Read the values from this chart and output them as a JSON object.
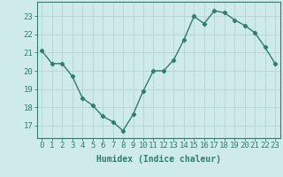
{
  "x": [
    0,
    1,
    2,
    3,
    4,
    5,
    6,
    7,
    8,
    9,
    10,
    11,
    12,
    13,
    14,
    15,
    16,
    17,
    18,
    19,
    20,
    21,
    22,
    23
  ],
  "y": [
    21.1,
    20.4,
    20.4,
    19.7,
    18.5,
    18.1,
    17.5,
    17.2,
    16.7,
    17.6,
    18.9,
    20.0,
    20.0,
    20.6,
    21.7,
    23.0,
    22.6,
    23.3,
    23.2,
    22.8,
    22.5,
    22.1,
    21.3,
    20.4
  ],
  "line_color": "#2e7d6e",
  "marker": "D",
  "markersize": 2.2,
  "linewidth": 1.0,
  "bg_color": "#ceeaea",
  "grid_color": "#b8d8d8",
  "xlabel": "Humidex (Indice chaleur)",
  "xlim": [
    -0.5,
    23.5
  ],
  "ylim": [
    16.3,
    23.8
  ],
  "yticks": [
    17,
    18,
    19,
    20,
    21,
    22,
    23
  ],
  "xticks": [
    0,
    1,
    2,
    3,
    4,
    5,
    6,
    7,
    8,
    9,
    10,
    11,
    12,
    13,
    14,
    15,
    16,
    17,
    18,
    19,
    20,
    21,
    22,
    23
  ],
  "tick_color": "#2e7d6e",
  "label_fontsize": 7,
  "tick_fontsize": 6.5
}
